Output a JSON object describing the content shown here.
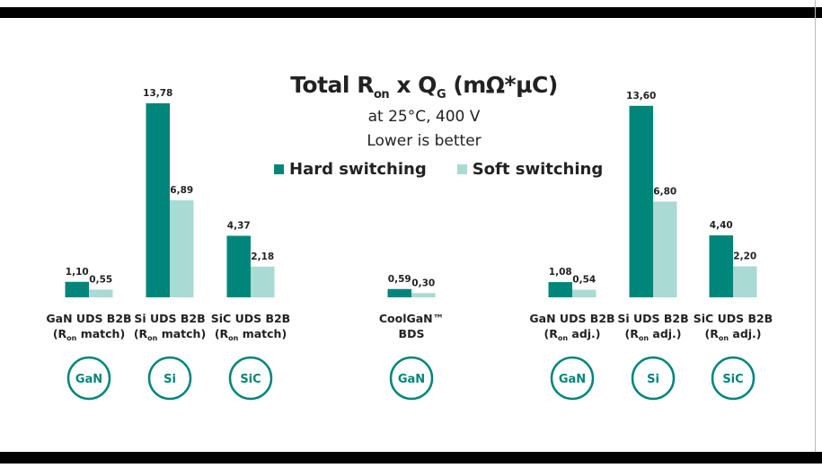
{
  "colors": {
    "hard": "#00857a",
    "soft": "#a9dad3"
  },
  "chart_data": {
    "type": "bar",
    "title": "Total Ron x QG (mΩ*µC)",
    "title_parts": {
      "main": "Total R",
      "sub1": "on",
      "mid": " x Q",
      "sub2": "G",
      "end": " (mΩ*µC)"
    },
    "subtitle": "at 25°C, 400 V",
    "note": "Lower is better",
    "legend": [
      "Hard switching",
      "Soft switching"
    ],
    "categories": [
      {
        "line1": "GaN UDS B2B",
        "line2": [
          "(R",
          "on",
          " match)"
        ],
        "badge": "GaN"
      },
      {
        "line1": "Si UDS B2B",
        "line2": [
          "(R",
          "on",
          " match)"
        ],
        "badge": "Si"
      },
      {
        "line1": "SiC UDS B2B",
        "line2": [
          "(R",
          "on",
          " match)"
        ],
        "badge": "SiC"
      },
      {
        "line1": "CoolGaN™",
        "line2": [
          "BDS",
          "",
          ""
        ],
        "badge": "GaN"
      },
      {
        "line1": "GaN UDS B2B",
        "line2": [
          "(R",
          "on",
          " adj.)"
        ],
        "badge": "GaN"
      },
      {
        "line1": "Si UDS B2B",
        "line2": [
          "(R",
          "on",
          " adj.)"
        ],
        "badge": "Si"
      },
      {
        "line1": "SiC UDS B2B",
        "line2": [
          "(R",
          "on",
          " adj.)"
        ],
        "badge": "SiC"
      }
    ],
    "series": [
      {
        "name": "Hard switching",
        "values": [
          1.1,
          13.78,
          4.37,
          0.59,
          1.08,
          13.6,
          4.4
        ],
        "labels": [
          "1,10",
          "13,78",
          "4,37",
          "0,59",
          "1,08",
          "13,60",
          "4,40"
        ]
      },
      {
        "name": "Soft switching",
        "values": [
          0.55,
          6.89,
          2.18,
          0.3,
          0.54,
          6.8,
          2.2
        ],
        "labels": [
          "0,55",
          "6,89",
          "2,18",
          "0,30",
          "0,54",
          "6,80",
          "2,20"
        ]
      }
    ],
    "ylim": [
      0,
      14
    ],
    "grid": false,
    "legend_placement": "top-center"
  }
}
